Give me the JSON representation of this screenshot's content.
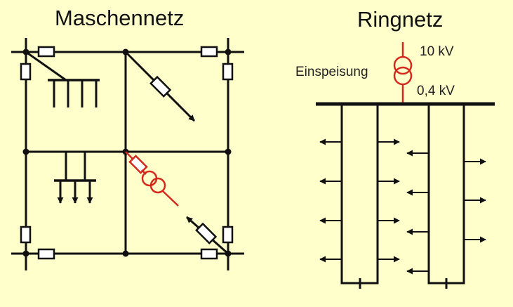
{
  "mesh_network": {
    "title": "Maschennetz"
  },
  "ring_network": {
    "title": "Ringnetz",
    "feed_label": "Einspeisung",
    "high_voltage": "10 kV",
    "low_voltage": "0,4 kV"
  },
  "colors": {
    "background": "#ffffcc",
    "line": "#111111",
    "fuse_fill": "#ffffff",
    "transformer": "#d42a1e"
  }
}
